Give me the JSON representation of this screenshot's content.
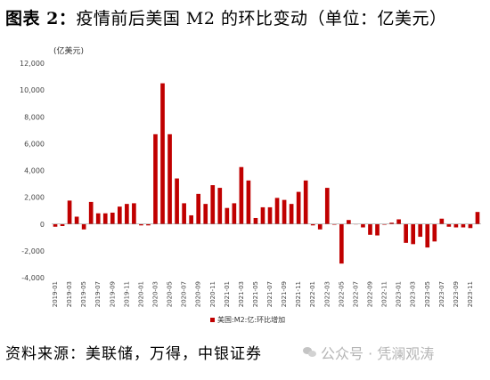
{
  "figure": {
    "title_lead": "图表 2：",
    "title_rest": "疫情前后美国 M2 的环比变动（单位：亿美元）",
    "source": "资料来源：美联储，万得，中银证券",
    "watermark": "公众号 · 凭澜观涛"
  },
  "chart_data": {
    "type": "bar",
    "title": "",
    "unit_label": "(亿美元)",
    "ylim": [
      -4000,
      12000
    ],
    "yticks": [
      -4000,
      -2000,
      0,
      2000,
      4000,
      6000,
      8000,
      10000,
      12000
    ],
    "ytick_labels": [
      "-4,000",
      "-2,000",
      "0",
      "2,000",
      "4,000",
      "6,000",
      "8,000",
      "10,000",
      "12,000"
    ],
    "grid": false,
    "legend_position": "bottom-center",
    "bar_color": "#c00000",
    "series": [
      {
        "name": "美国:M2:亿:环比增加",
        "values": [
          -200,
          -150,
          1750,
          550,
          -400,
          1650,
          800,
          800,
          850,
          1300,
          1500,
          1550,
          -100,
          -100,
          6700,
          10500,
          6700,
          3400,
          1550,
          650,
          2250,
          1500,
          2900,
          2700,
          1200,
          1550,
          4250,
          3250,
          450,
          1250,
          1250,
          1950,
          1800,
          1500,
          2400,
          3250,
          -100,
          -400,
          2700,
          -50,
          -2950,
          300,
          0,
          -250,
          -800,
          -850,
          -50,
          100,
          350,
          -1400,
          -1500,
          -950,
          -1750,
          -1300,
          400,
          -200,
          -250,
          -250,
          -300,
          900
        ]
      }
    ],
    "categories": [
      "2019-01",
      "2019-02",
      "2019-03",
      "2019-04",
      "2019-05",
      "2019-06",
      "2019-07",
      "2019-08",
      "2019-09",
      "2019-10",
      "2019-11",
      "2019-12",
      "2020-01",
      "2020-02",
      "2020-03",
      "2020-04",
      "2020-05",
      "2020-06",
      "2020-07",
      "2020-08",
      "2020-09",
      "2020-10",
      "2020-11",
      "2020-12",
      "2021-01",
      "2021-02",
      "2021-03",
      "2021-04",
      "2021-05",
      "2021-06",
      "2021-07",
      "2021-08",
      "2021-09",
      "2021-10",
      "2021-11",
      "2021-12",
      "2022-01",
      "2022-02",
      "2022-03",
      "2022-04",
      "2022-05",
      "2022-06",
      "2022-07",
      "2022-08",
      "2022-09",
      "2022-10",
      "2022-11",
      "2022-12",
      "2023-01",
      "2023-02",
      "2023-03",
      "2023-04",
      "2023-05",
      "2023-06",
      "2023-07",
      "2023-08",
      "2023-09",
      "2023-10",
      "2023-11",
      "2023-12"
    ],
    "xtick_labels": [
      "2019-01",
      "2019-03",
      "2019-05",
      "2019-07",
      "2019-09",
      "2019-11",
      "2020-01",
      "2020-03",
      "2020-05",
      "2020-07",
      "2020-09",
      "2020-11",
      "2021-01",
      "2021-03",
      "2021-05",
      "2021-07",
      "2021-09",
      "2021-11",
      "2022-01",
      "2022-03",
      "2022-05",
      "2022-07",
      "2022-09",
      "2022-11",
      "2023-01",
      "2023-03",
      "2023-05",
      "2023-07",
      "2023-09",
      "2023-11"
    ]
  }
}
